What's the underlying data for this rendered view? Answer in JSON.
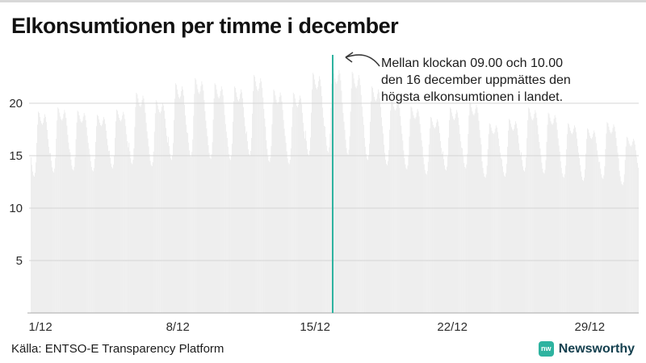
{
  "chart_data": {
    "type": "bar",
    "title": "Elkonsumtionen per timme i december",
    "resolution": "hourly",
    "days": 31,
    "yticks": [
      5,
      10,
      15,
      20
    ],
    "ylim": [
      0,
      24
    ],
    "x_ticks": [
      {
        "day": 1,
        "label": "1/12"
      },
      {
        "day": 8,
        "label": "8/12"
      },
      {
        "day": 15,
        "label": "15/12"
      },
      {
        "day": 22,
        "label": "22/12"
      },
      {
        "day": 29,
        "label": "29/12"
      }
    ],
    "hour_profile": [
      0.3,
      0.18,
      0.08,
      0.02,
      0.0,
      0.06,
      0.22,
      0.52,
      0.8,
      1.0,
      0.98,
      0.92,
      0.86,
      0.82,
      0.8,
      0.83,
      0.9,
      0.96,
      0.92,
      0.84,
      0.72,
      0.58,
      0.46,
      0.36
    ],
    "daily_max": [
      19.2,
      19.6,
      19.3,
      18.9,
      19.4,
      21.0,
      20.3,
      21.9,
      22.4,
      21.9,
      21.6,
      22.7,
      21.3,
      21.0,
      22.9,
      23.5,
      23.0,
      21.6,
      20.6,
      19.7,
      18.7,
      19.6,
      20.1,
      18.1,
      18.5,
      19.6,
      19.1,
      18.1,
      17.6,
      18.2,
      16.8
    ],
    "daily_min": [
      13.0,
      13.4,
      13.6,
      13.5,
      13.8,
      14.2,
      14.0,
      14.6,
      14.9,
      14.7,
      14.6,
      15.0,
      14.4,
      14.2,
      15.0,
      15.3,
      15.1,
      14.6,
      14.1,
      13.7,
      13.2,
      13.6,
      13.8,
      12.9,
      13.0,
      13.5,
      13.3,
      12.9,
      12.6,
      12.8,
      12.2
    ],
    "max_value": 23.5,
    "bar_color": "#e8e8e8",
    "grid_color": "#d4d4d4",
    "axis_color": "#a8a8a8",
    "highlight": {
      "day": 16,
      "hour": 9,
      "color": "#2eb3a0"
    },
    "annotation_lines": [
      "Mellan klockan 09.00 och 10.00",
      "den 16 december uppmättes den",
      "högsta elkonsumtionen i landet."
    ]
  },
  "footer": {
    "source": "Källa: ENTSO-E Transparency Platform",
    "brand": "Newsworthy",
    "brand_color": "#15404f",
    "logo_color": "#2eb3a0",
    "logo_glyph": "nw"
  }
}
